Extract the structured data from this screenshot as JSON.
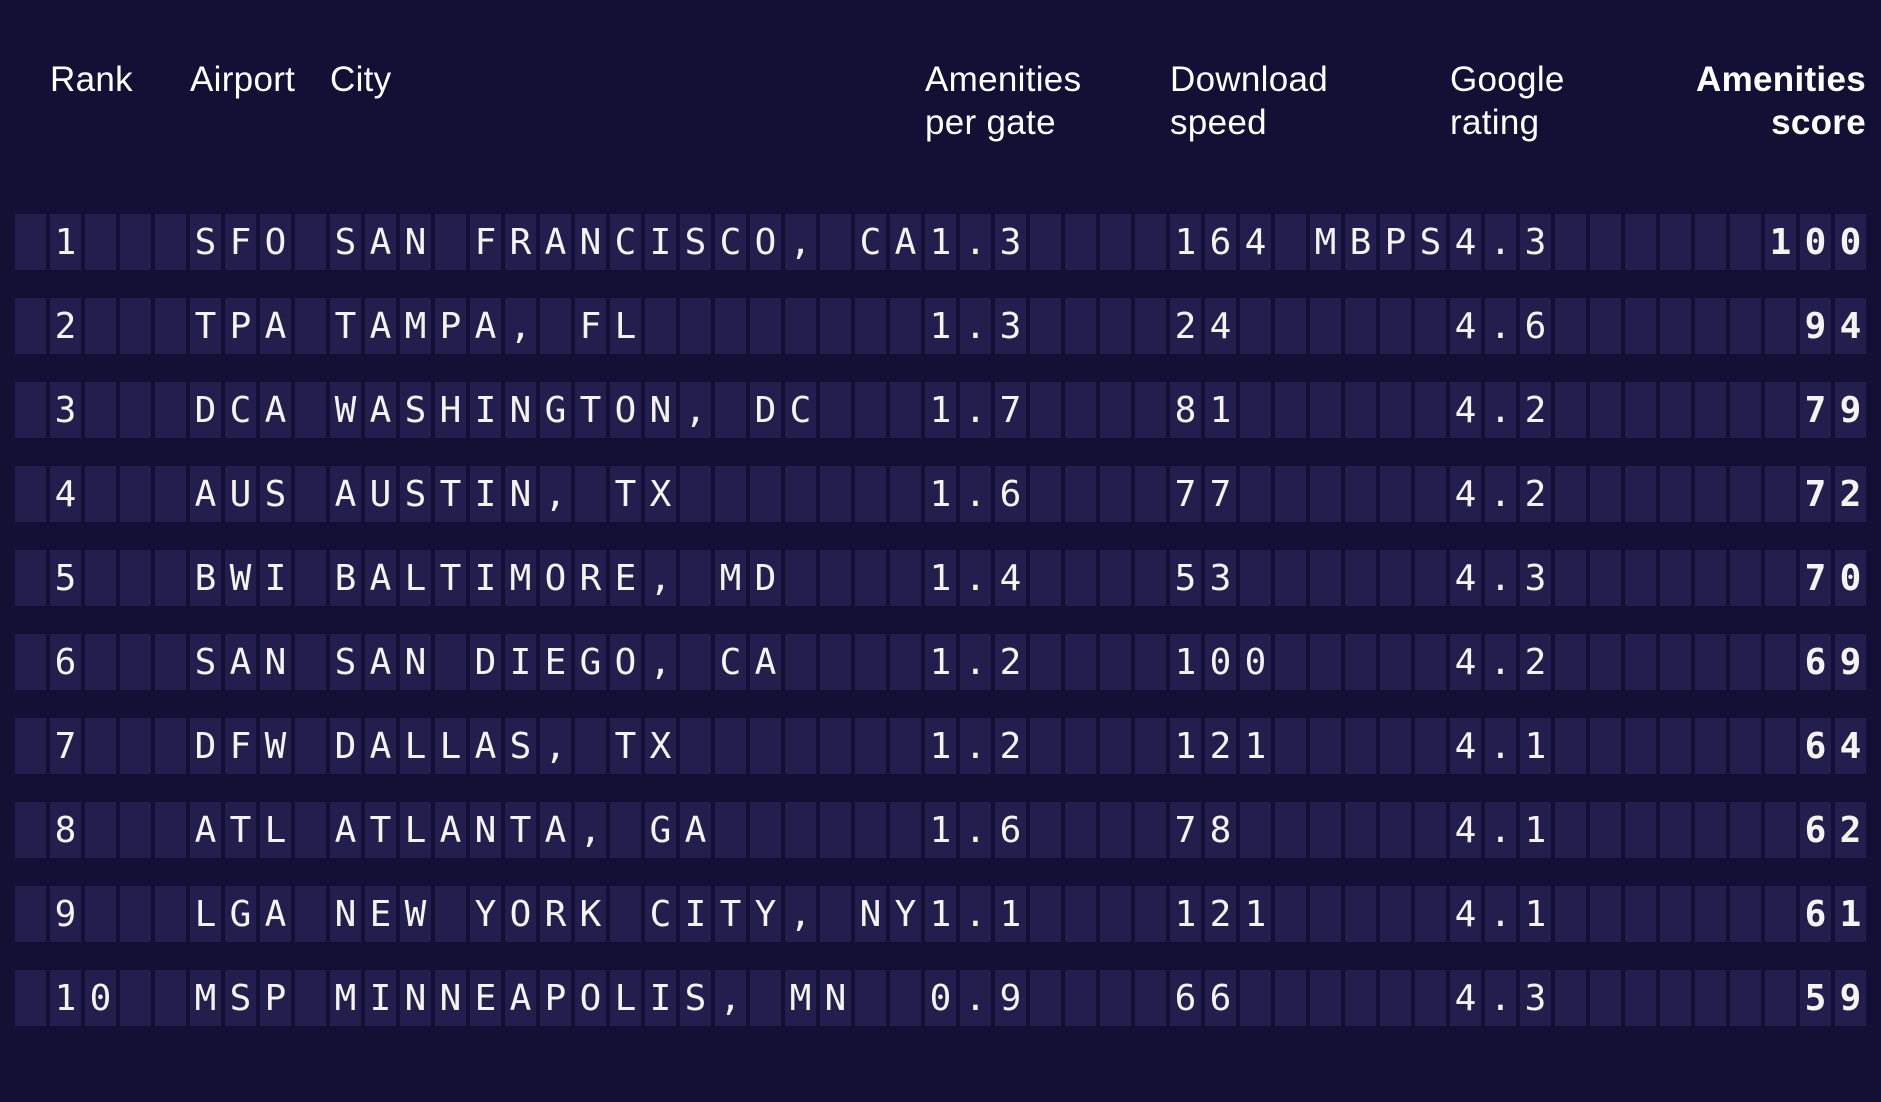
{
  "headers": {
    "rank": "Rank",
    "airport": "Airport",
    "city": "City",
    "amenities_per_gate": "Amenities per gate",
    "download_speed": "Download speed",
    "google_rating": "Google rating",
    "amenities_score": "Amenities score"
  },
  "colors": {
    "background": "#121034",
    "cell": "#221f4e",
    "row_text": "#f5f3ed",
    "header_text": "#ffffff"
  },
  "chart_data": {
    "type": "table",
    "columns": [
      "Rank",
      "Airport",
      "City",
      "Amenities per gate",
      "Download speed",
      "Google rating",
      "Amenities score"
    ],
    "rows": [
      [
        "1",
        "SFO",
        "SAN FRANCISCO, CA",
        "1.3",
        "164 MBPS",
        "4.3",
        "100"
      ],
      [
        "2",
        "TPA",
        "TAMPA, FL",
        "1.3",
        "24",
        "4.6",
        "94"
      ],
      [
        "3",
        "DCA",
        "WASHINGTON, DC",
        "1.7",
        "81",
        "4.2",
        "79"
      ],
      [
        "4",
        "AUS",
        "AUSTIN, TX",
        "1.6",
        "77",
        "4.2",
        "72"
      ],
      [
        "5",
        "BWI",
        "BALTIMORE, MD",
        "1.4",
        "53",
        "4.3",
        "70"
      ],
      [
        "6",
        "SAN",
        "SAN DIEGO, CA",
        "1.2",
        "100",
        "4.2",
        "69"
      ],
      [
        "7",
        "DFW",
        "DALLAS, TX",
        "1.2",
        "121",
        "4.1",
        "64"
      ],
      [
        "8",
        "ATL",
        "ATLANTA, GA",
        "1.6",
        "78",
        "4.1",
        "62"
      ],
      [
        "9",
        "LGA",
        "NEW YORK CITY, NY",
        "1.1",
        "121",
        "4.1",
        "61"
      ],
      [
        "10",
        "MSP",
        "MINNEAPOLIS, MN",
        "0.9",
        "66",
        "4.3",
        "59"
      ]
    ]
  }
}
